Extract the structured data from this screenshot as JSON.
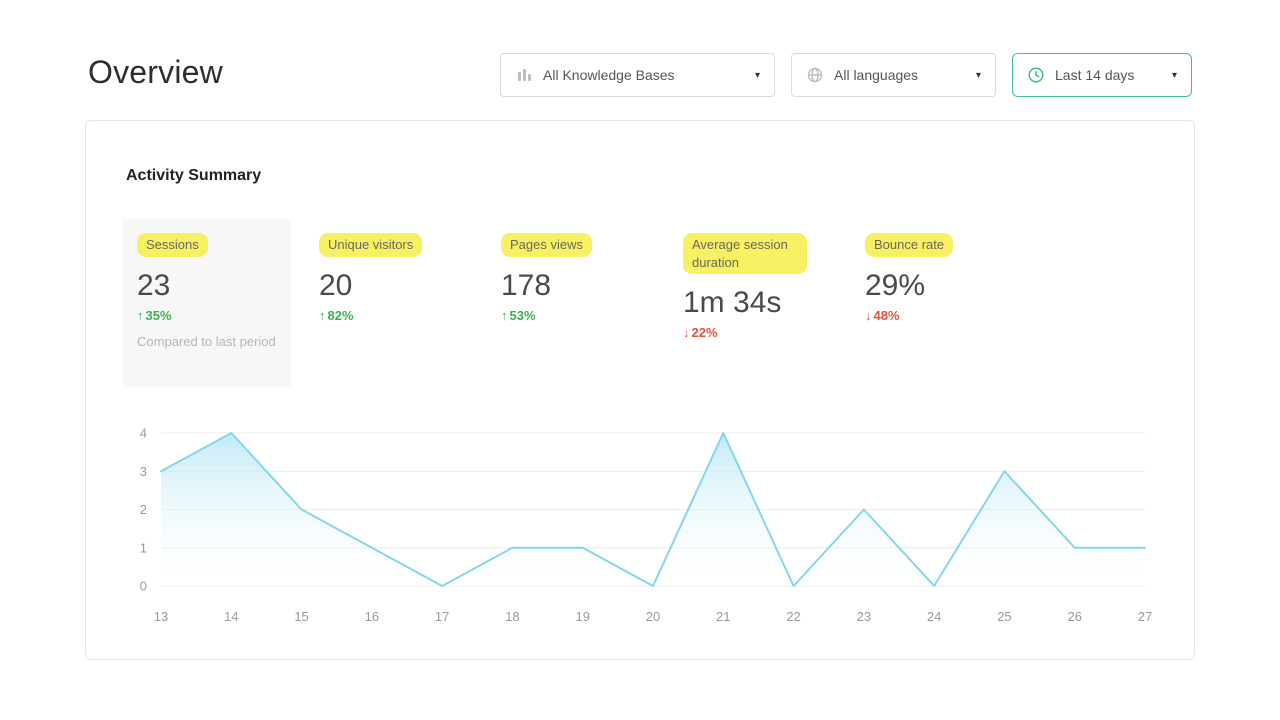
{
  "page": {
    "title": "Overview"
  },
  "filters": {
    "knowledge_bases": {
      "label": "All Knowledge Bases"
    },
    "languages": {
      "label": "All languages"
    },
    "date_range": {
      "label": "Last 14 days"
    }
  },
  "icons": {
    "caret": "▾",
    "up_arrow": "↑",
    "down_arrow": "↓"
  },
  "card": {
    "title": "Activity Summary"
  },
  "metrics": [
    {
      "label": "Sessions",
      "value": "23",
      "change": "35%",
      "direction": "up",
      "note": "Compared to last period",
      "boxed": true
    },
    {
      "label": "Unique visitors",
      "value": "20",
      "change": "82%",
      "direction": "up"
    },
    {
      "label": "Pages views",
      "value": "178",
      "change": "53%",
      "direction": "up"
    },
    {
      "label": "Average session duration",
      "value": "1m 34s",
      "change": "22%",
      "direction": "down"
    },
    {
      "label": "Bounce rate",
      "value": "29%",
      "change": "48%",
      "direction": "down"
    }
  ],
  "chart_data": {
    "type": "area",
    "title": "Activity Summary",
    "x": [
      13,
      14,
      15,
      16,
      17,
      18,
      19,
      20,
      21,
      22,
      23,
      24,
      25,
      26,
      27
    ],
    "values": [
      3,
      4,
      2,
      1,
      0,
      1,
      1,
      0,
      4,
      0,
      2,
      0,
      3,
      1,
      1
    ],
    "xlabel": "",
    "ylabel": "",
    "ylim": [
      0,
      4
    ],
    "yticks": [
      0,
      1,
      2,
      3,
      4
    ],
    "grid": true,
    "legend": false,
    "line_color": "#85d6eb",
    "fill_top_color": "#aee3f3",
    "fill_bottom_color": "#ffffff"
  },
  "colors": {
    "positive": "#3bb24e",
    "negative": "#e2523f",
    "highlight": "#f7f062",
    "accent": "#3fc08c"
  }
}
